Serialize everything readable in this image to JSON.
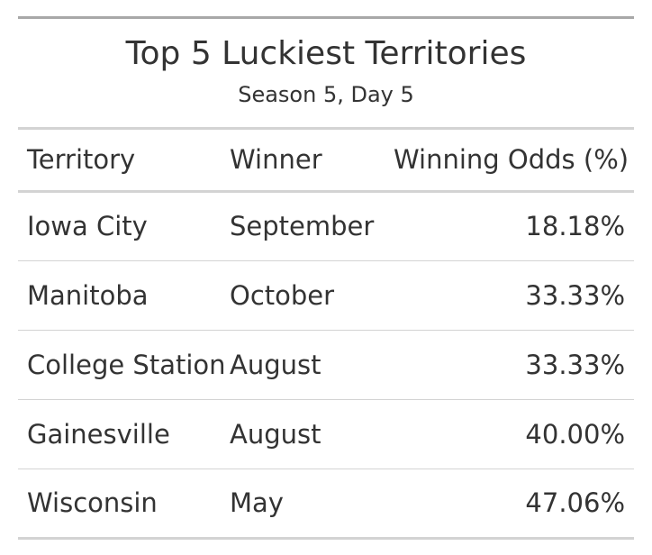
{
  "table": {
    "title": "Top 5 Luckiest Territories",
    "subtitle": "Season 5, Day 5",
    "headers": [
      "Territory",
      "Winner",
      "Winning Odds (%)"
    ],
    "rows": [
      {
        "territory": "Iowa City",
        "winner": "September",
        "odds": "18.18%"
      },
      {
        "territory": "Manitoba",
        "winner": "October",
        "odds": "33.33%"
      },
      {
        "territory": "College Station",
        "winner": "August",
        "odds": "33.33%"
      },
      {
        "territory": "Gainesville",
        "winner": "August",
        "odds": "40.00%"
      },
      {
        "territory": "Wisconsin",
        "winner": "May",
        "odds": "47.06%"
      }
    ]
  }
}
